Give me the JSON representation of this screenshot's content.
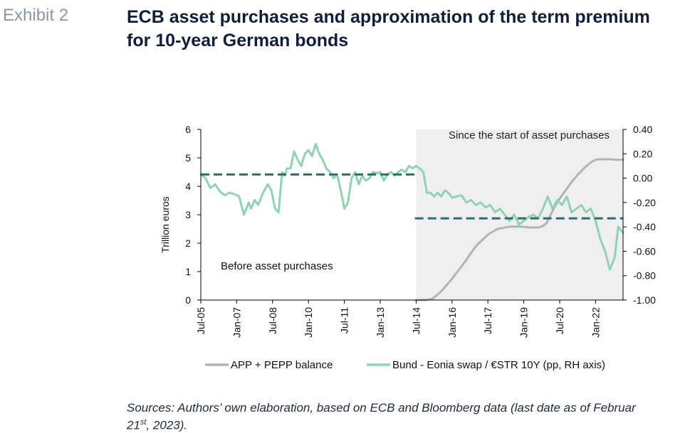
{
  "header": {
    "exhibit_label": "Exhibit 2",
    "title_line1": "ECB asset purchases and approximation of the term premium",
    "title_line2": "for 10-year German bonds"
  },
  "footer": {
    "sources_part1": "Sources: Authors’ own elaboration, based on ECB and Bloomberg data (last date as of Februar",
    "sources_sup": "st",
    "sources_day": "21",
    "sources_part2": ", 2023)."
  },
  "colors": {
    "app_line": "#b3b3b3",
    "bund_line": "#8fd3b2",
    "dashed_avg": "#2a6d72",
    "shade": "#efefef"
  },
  "chart_data": {
    "type": "line",
    "ylabel": "Trillion euros",
    "left_axis": {
      "ylim": [
        0,
        6
      ],
      "ticks": [
        "0",
        "1",
        "2",
        "3",
        "4",
        "5",
        "6"
      ]
    },
    "right_axis": {
      "ylim": [
        -1.0,
        0.4
      ],
      "ticks": [
        "-1.00",
        "-0.80",
        "-0.60",
        "-0.40",
        "-0.20",
        "0.00",
        "0.20",
        "0.40"
      ]
    },
    "x_ticks": [
      "Jul-05",
      "Jan-07",
      "Jul-08",
      "Jan-10",
      "Jul-11",
      "Jan-13",
      "Jul-14",
      "Jan-16",
      "Jul-17",
      "Jan-19",
      "Jul-20",
      "Jan-22"
    ],
    "xlim": [
      2005.5,
      2023.15
    ],
    "grid": false,
    "legend_position": "bottom",
    "annotations": {
      "shaded_label": "Since the start of asset purchases",
      "before_label": "Before asset purchases",
      "shaded_start": 2014.5
    },
    "series": [
      {
        "name": "APP + PEPP balance",
        "axis": "left",
        "x": [
          2014.5,
          2014.9,
          2015.2,
          2015.6,
          2016.0,
          2016.5,
          2017.0,
          2017.5,
          2017.9,
          2018.4,
          2018.9,
          2019.3,
          2019.6,
          2019.8,
          2019.95,
          2020.15,
          2020.4,
          2020.7,
          2021.0,
          2021.3,
          2021.6,
          2021.9,
          2022.1,
          2022.3,
          2022.6,
          2022.9,
          2023.15
        ],
        "values": [
          0.0,
          0.0,
          0.05,
          0.35,
          0.75,
          1.3,
          1.9,
          2.3,
          2.5,
          2.58,
          2.58,
          2.55,
          2.55,
          2.6,
          2.7,
          3.05,
          3.45,
          3.8,
          4.15,
          4.45,
          4.7,
          4.9,
          4.95,
          4.95,
          4.95,
          4.93,
          4.93
        ]
      },
      {
        "name": "Bund - Eonia swap / €STR 10Y (pp, RH axis)",
        "axis": "right",
        "x": [
          2005.5,
          2005.7,
          2005.9,
          2006.1,
          2006.3,
          2006.5,
          2006.7,
          2006.9,
          2007.1,
          2007.3,
          2007.5,
          2007.6,
          2007.75,
          2007.9,
          2008.1,
          2008.3,
          2008.45,
          2008.6,
          2008.75,
          2008.9,
          2009.0,
          2009.1,
          2009.25,
          2009.4,
          2009.55,
          2009.7,
          2009.85,
          2010.0,
          2010.15,
          2010.3,
          2010.45,
          2010.6,
          2010.75,
          2010.9,
          2011.05,
          2011.2,
          2011.35,
          2011.5,
          2011.65,
          2011.8,
          2011.95,
          2012.1,
          2012.25,
          2012.4,
          2012.55,
          2012.7,
          2012.85,
          2013.0,
          2013.15,
          2013.3,
          2013.45,
          2013.6,
          2013.75,
          2013.9,
          2014.05,
          2014.2,
          2014.35,
          2014.5,
          2014.65,
          2014.8,
          2014.95,
          2015.1,
          2015.25,
          2015.4,
          2015.55,
          2015.7,
          2015.85,
          2016.0,
          2016.2,
          2016.4,
          2016.6,
          2016.8,
          2017.0,
          2017.2,
          2017.4,
          2017.6,
          2017.8,
          2018.0,
          2018.2,
          2018.4,
          2018.6,
          2018.8,
          2019.0,
          2019.2,
          2019.4,
          2019.6,
          2019.8,
          2020.0,
          2020.2,
          2020.4,
          2020.6,
          2020.8,
          2021.0,
          2021.2,
          2021.4,
          2021.6,
          2021.8,
          2022.0,
          2022.2,
          2022.4,
          2022.6,
          2022.8,
          2022.95,
          2023.15
        ],
        "values": [
          0.03,
          0.0,
          -0.08,
          -0.05,
          -0.11,
          -0.14,
          -0.12,
          -0.13,
          -0.15,
          -0.3,
          -0.2,
          -0.25,
          -0.18,
          -0.22,
          -0.12,
          -0.05,
          -0.1,
          -0.25,
          -0.28,
          0.05,
          0.02,
          0.08,
          0.08,
          0.22,
          0.15,
          0.1,
          0.2,
          0.23,
          0.18,
          0.28,
          0.2,
          0.15,
          0.08,
          0.05,
          0.0,
          0.03,
          -0.1,
          -0.25,
          -0.2,
          0.0,
          0.05,
          -0.05,
          0.02,
          -0.02,
          0.0,
          0.05,
          0.04,
          0.05,
          -0.02,
          0.03,
          0.05,
          0.02,
          0.05,
          0.07,
          0.05,
          0.1,
          0.08,
          0.1,
          0.08,
          0.05,
          -0.12,
          -0.12,
          -0.15,
          -0.12,
          -0.15,
          -0.1,
          -0.12,
          -0.16,
          -0.15,
          -0.14,
          -0.2,
          -0.18,
          -0.22,
          -0.2,
          -0.24,
          -0.22,
          -0.28,
          -0.25,
          -0.3,
          -0.35,
          -0.3,
          -0.38,
          -0.35,
          -0.32,
          -0.3,
          -0.33,
          -0.25,
          -0.15,
          -0.25,
          -0.18,
          -0.22,
          -0.15,
          -0.28,
          -0.25,
          -0.22,
          -0.28,
          -0.25,
          -0.35,
          -0.5,
          -0.6,
          -0.75,
          -0.65,
          -0.4,
          -0.45
        ]
      }
    ],
    "reference_lines": [
      {
        "name": "Pre-purchase average",
        "axis": "right",
        "x": [
          2005.5,
          2014.6
        ],
        "value": 0.03
      },
      {
        "name": "Post-purchase average",
        "axis": "right",
        "x": [
          2014.45,
          2023.15
        ],
        "value": -0.33
      }
    ]
  }
}
